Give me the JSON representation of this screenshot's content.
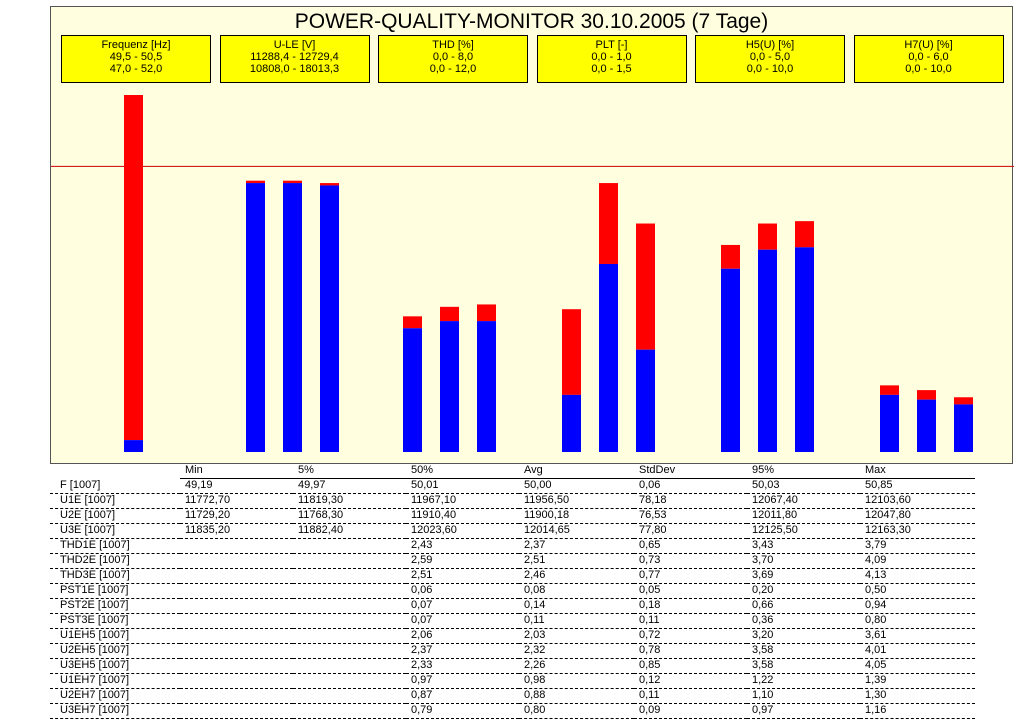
{
  "chart_data": {
    "type": "bar",
    "title": "POWER-QUALITY-MONITOR 30.10.2005 (7 Tage)",
    "groups": [
      {
        "name": "Frequenz [Hz]",
        "range1": "49,5 - 50,5",
        "range2": "47,0 - 52,0",
        "bars": [
          {
            "blue": 0.05,
            "total": 1.5
          }
        ]
      },
      {
        "name": "U-LE [V]",
        "range1": "11288,4 - 12729,4",
        "range2": "10808,0 - 18013,3",
        "bars": [
          {
            "blue": 1.13,
            "total": 1.14
          },
          {
            "blue": 1.13,
            "total": 1.14
          },
          {
            "blue": 1.12,
            "total": 1.13
          }
        ]
      },
      {
        "name": "THD [%]",
        "range1": "0,0 - 8,0",
        "range2": "0,0 - 12,0",
        "bars": [
          {
            "blue": 0.52,
            "total": 0.57
          },
          {
            "blue": 0.55,
            "total": 0.61
          },
          {
            "blue": 0.55,
            "total": 0.62
          }
        ]
      },
      {
        "name": "PLT [-]",
        "range1": "0,0 - 1,0",
        "range2": "0,0 - 1,5",
        "bars": [
          {
            "blue": 0.24,
            "total": 0.6
          },
          {
            "blue": 0.79,
            "total": 1.13
          },
          {
            "blue": 0.43,
            "total": 0.96
          }
        ]
      },
      {
        "name": "H5(U) [%]",
        "range1": "0,0 - 5,0",
        "range2": "0,0 - 10,0",
        "bars": [
          {
            "blue": 0.77,
            "total": 0.87
          },
          {
            "blue": 0.85,
            "total": 0.96
          },
          {
            "blue": 0.86,
            "total": 0.97
          }
        ]
      },
      {
        "name": "H7(U) [%]",
        "range1": "0,0 - 6,0",
        "range2": "0,0 - 10,0",
        "bars": [
          {
            "blue": 0.24,
            "total": 0.28
          },
          {
            "blue": 0.22,
            "total": 0.26
          },
          {
            "blue": 0.2,
            "total": 0.23
          }
        ]
      }
    ],
    "reference_line": 1.2,
    "ylim": [
      0,
      1.5
    ],
    "colors": {
      "blue": "#0000ff",
      "red": "#ff0000",
      "reference": "#cc0000"
    }
  },
  "table": {
    "headers": [
      "",
      "Min",
      "5%",
      "50%",
      "Avg",
      "StdDev",
      "95%",
      "Max"
    ],
    "rows": [
      [
        "F [1007]",
        "49,19",
        "49,97",
        "50,01",
        "50,00",
        "0,06",
        "50,03",
        "50,85"
      ],
      [
        "U1E [1007]",
        "11772,70",
        "11819,30",
        "11967,10",
        "11956,50",
        "78,18",
        "12067,40",
        "12103,60"
      ],
      [
        "U2E [1007]",
        "11729,20",
        "11768,30",
        "11910,40",
        "11900,18",
        "76,53",
        "12011,80",
        "12047,80"
      ],
      [
        "U3E [1007]",
        "11835,20",
        "11882,40",
        "12023,60",
        "12014,65",
        "77,80",
        "12125,50",
        "12163,30"
      ],
      [
        "THD1E [1007]",
        "",
        "",
        "2,43",
        "2,37",
        "0,65",
        "3,43",
        "3,79"
      ],
      [
        "THD2E [1007]",
        "",
        "",
        "2,59",
        "2,51",
        "0,73",
        "3,70",
        "4,09"
      ],
      [
        "THD3E [1007]",
        "",
        "",
        "2,51",
        "2,46",
        "0,77",
        "3,69",
        "4,13"
      ],
      [
        "PST1E [1007]",
        "",
        "",
        "0,06",
        "0,08",
        "0,05",
        "0,20",
        "0,50"
      ],
      [
        "PST2E [1007]",
        "",
        "",
        "0,07",
        "0,14",
        "0,18",
        "0,66",
        "0,94"
      ],
      [
        "PST3E [1007]",
        "",
        "",
        "0,07",
        "0,11",
        "0,11",
        "0,36",
        "0,80"
      ],
      [
        "U1EH5 [1007]",
        "",
        "",
        "2,06",
        "2,03",
        "0,72",
        "3,20",
        "3,61"
      ],
      [
        "U2EH5 [1007]",
        "",
        "",
        "2,37",
        "2,32",
        "0,78",
        "3,58",
        "4,01"
      ],
      [
        "U3EH5 [1007]",
        "",
        "",
        "2,33",
        "2,26",
        "0,85",
        "3,58",
        "4,05"
      ],
      [
        "U1EH7 [1007]",
        "",
        "",
        "0,97",
        "0,98",
        "0,12",
        "1,22",
        "1,39"
      ],
      [
        "U2EH7 [1007]",
        "",
        "",
        "0,87",
        "0,88",
        "0,11",
        "1,10",
        "1,30"
      ],
      [
        "U3EH7 [1007]",
        "",
        "",
        "0,79",
        "0,80",
        "0,09",
        "0,97",
        "1,16"
      ]
    ]
  }
}
